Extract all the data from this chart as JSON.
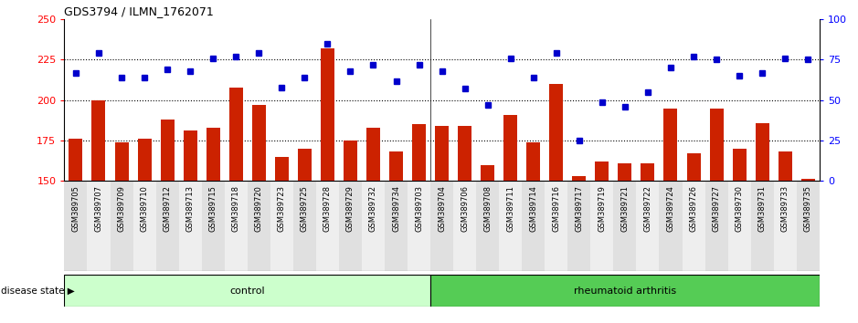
{
  "title": "GDS3794 / ILMN_1762071",
  "samples": [
    "GSM389705",
    "GSM389707",
    "GSM389709",
    "GSM389710",
    "GSM389712",
    "GSM389713",
    "GSM389715",
    "GSM389718",
    "GSM389720",
    "GSM389723",
    "GSM389725",
    "GSM389728",
    "GSM389729",
    "GSM389732",
    "GSM389734",
    "GSM389703",
    "GSM389704",
    "GSM389706",
    "GSM389708",
    "GSM389711",
    "GSM389714",
    "GSM389716",
    "GSM389717",
    "GSM389719",
    "GSM389721",
    "GSM389722",
    "GSM389724",
    "GSM389726",
    "GSM389727",
    "GSM389730",
    "GSM389731",
    "GSM389733",
    "GSM389735"
  ],
  "counts": [
    176,
    200,
    174,
    176,
    188,
    181,
    183,
    208,
    197,
    165,
    170,
    232,
    175,
    183,
    168,
    185,
    184,
    184,
    160,
    191,
    174,
    210,
    153,
    162,
    161,
    161,
    195,
    167,
    195,
    170,
    186,
    168,
    151
  ],
  "percentile_ranks": [
    67,
    79,
    64,
    64,
    69,
    68,
    76,
    77,
    79,
    58,
    64,
    85,
    68,
    72,
    62,
    72,
    68,
    57,
    47,
    76,
    64,
    79,
    25,
    49,
    46,
    55,
    70,
    77,
    75,
    65,
    67,
    76,
    75
  ],
  "control_count": 16,
  "rheumatoid_count": 17,
  "bar_color": "#cc2200",
  "dot_color": "#0000cc",
  "control_color": "#ccffcc",
  "rheumatoid_color": "#55cc55",
  "ylim_left": [
    150,
    250
  ],
  "ylim_right": [
    0,
    100
  ],
  "yticks_left": [
    150,
    175,
    200,
    225,
    250
  ],
  "yticks_right": [
    0,
    25,
    50,
    75,
    100
  ],
  "background_color": "#ffffff"
}
